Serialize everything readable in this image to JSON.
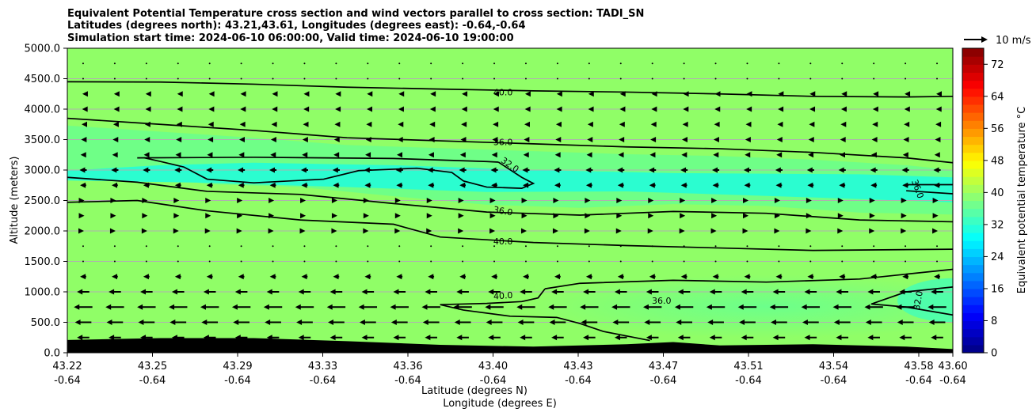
{
  "title_lines": [
    "Equivalent Potential Temperature cross section and wind vectors parallel to cross section: TADI_SN",
    "Latitudes (degrees north): 43.21,43.61, Longitudes (degrees east): -0.64,-0.64",
    "Simulation start time: 2024-06-10 06:00:00, Valid time: 2024-06-10 19:00:00"
  ],
  "chart_data": {
    "type": "heatmap",
    "subtype": "vertical cross section with contours and wind vectors",
    "ylabel": "Altitude (meters)",
    "xlabel_lines": [
      "Latitude (degrees N)",
      "Longitude (degrees E)"
    ],
    "ylim": [
      0,
      5000
    ],
    "y_ticks": [
      "0.0",
      "500.0",
      "1000.0",
      "1500.0",
      "2000.0",
      "2500.0",
      "3000.0",
      "3500.0",
      "4000.0",
      "4500.0",
      "5000.0"
    ],
    "x_range": [
      43.22,
      43.6
    ],
    "x_ticks": [
      {
        "lat": "43.22",
        "lon": "-0.64"
      },
      {
        "lat": "43.25",
        "lon": "-0.64"
      },
      {
        "lat": "43.29",
        "lon": "-0.64"
      },
      {
        "lat": "43.33",
        "lon": "-0.64"
      },
      {
        "lat": "43.36",
        "lon": "-0.64"
      },
      {
        "lat": "43.40",
        "lon": "-0.64"
      },
      {
        "lat": "43.43",
        "lon": "-0.64"
      },
      {
        "lat": "43.47",
        "lon": "-0.64"
      },
      {
        "lat": "43.51",
        "lon": "-0.64"
      },
      {
        "lat": "43.54",
        "lon": "-0.64"
      },
      {
        "lat": "43.58",
        "lon": "-0.64"
      },
      {
        "lat": "43.60",
        "lon": "-0.64"
      }
    ],
    "grid": true,
    "colorbar": {
      "label": "Equivalent potential temperature °C",
      "min": 0,
      "max": 76,
      "ticks": [
        "0",
        "8",
        "16",
        "24",
        "32",
        "40",
        "48",
        "56",
        "64",
        "72"
      ],
      "colormap": "jet"
    },
    "field_colors": {
      "background_40C": "#90fe67",
      "band_36C": "#6cff8b",
      "core_32C": "#2bfdd0",
      "terrain": "#000000"
    },
    "contour_labels": [
      "40.0",
      "36.0",
      "32.0",
      "36.0",
      "40.0",
      "40.0",
      "36.0",
      "36.0",
      "32.0"
    ],
    "contours": [
      {
        "label": "40.0",
        "x": [
          43.22,
          43.26,
          43.3,
          43.34,
          43.38,
          43.42,
          43.46,
          43.5,
          43.54,
          43.58,
          43.6
        ],
        "y": [
          4450,
          4445,
          4410,
          4360,
          4330,
          4300,
          4280,
          4250,
          4210,
          4200,
          4210
        ]
      },
      {
        "label": "36.0",
        "x": [
          43.22,
          43.26,
          43.3,
          43.34,
          43.38,
          43.42,
          43.46,
          43.5,
          43.54,
          43.58,
          43.6
        ],
        "y": [
          3850,
          3750,
          3650,
          3530,
          3480,
          3430,
          3380,
          3350,
          3290,
          3200,
          3120
        ]
      },
      {
        "label": "36.0",
        "x": [
          43.22,
          43.25,
          43.28,
          43.32,
          43.36,
          43.4,
          43.44,
          43.48,
          43.52,
          43.56,
          43.6
        ],
        "y": [
          2880,
          2800,
          2650,
          2600,
          2450,
          2310,
          2260,
          2320,
          2290,
          2180,
          2150
        ]
      },
      {
        "label": "40.0",
        "x": [
          43.22,
          43.25,
          43.28,
          43.32,
          43.36,
          43.38,
          43.42,
          43.46,
          43.5,
          43.54,
          43.6
        ],
        "y": [
          2470,
          2500,
          2330,
          2180,
          2110,
          1900,
          1810,
          1760,
          1720,
          1680,
          1700
        ]
      },
      {
        "label": "40.0",
        "x": [
          43.425,
          43.44,
          43.48,
          43.52,
          43.56,
          43.6
        ],
        "y": [
          1050,
          1140,
          1190,
          1160,
          1210,
          1370
        ]
      },
      {
        "label": "36.0",
        "x": [
          43.6,
          43.58,
          43.565,
          43.58,
          43.6
        ],
        "y": [
          1080,
          1000,
          800,
          750,
          620
        ]
      }
    ],
    "wind_vector_reference": "10 m/s",
    "wind_vectors": [
      {
        "z": 250,
        "u": -6
      },
      {
        "z": 500,
        "u": -8
      },
      {
        "z": 750,
        "u": -9
      },
      {
        "z": 1000,
        "u": -6
      },
      {
        "z": 1250,
        "u": -3
      },
      {
        "z": 1500,
        "u": -0.5
      },
      {
        "z": 1750,
        "u": 0.5
      },
      {
        "z": 2000,
        "u": 0.8
      },
      {
        "z": 2250,
        "u": 1.2
      },
      {
        "z": 2500,
        "u": 1.2
      },
      {
        "z": 2750,
        "u": -3
      },
      {
        "z": 3000,
        "u": -3.5
      },
      {
        "z": 3250,
        "u": -2.5
      },
      {
        "z": 3500,
        "u": -2
      },
      {
        "z": 3750,
        "u": -1.5
      },
      {
        "z": 4000,
        "u": -1
      },
      {
        "z": 4250,
        "u": -0.8
      },
      {
        "z": 4500,
        "u": -0.5
      },
      {
        "z": 4750,
        "u": -0.5
      }
    ],
    "terrain_height": {
      "x": [
        43.22,
        43.26,
        43.3,
        43.34,
        43.38,
        43.42,
        43.46,
        43.48,
        43.5,
        43.54,
        43.58,
        43.6
      ],
      "y": [
        210,
        240,
        240,
        190,
        130,
        100,
        140,
        175,
        120,
        140,
        100,
        60
      ]
    }
  }
}
